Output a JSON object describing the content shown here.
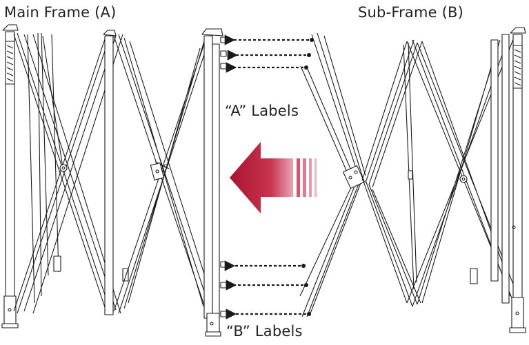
{
  "labels": {
    "main_frame": "Main Frame (A)",
    "sub_frame": "Sub-Frame (B)",
    "a_labels": "“A” Labels",
    "b_labels": "“B” Labels"
  },
  "colors": {
    "line": "#1a1a1a",
    "arrow": "#b01b35",
    "arrow_light": "#e2a3b0"
  }
}
